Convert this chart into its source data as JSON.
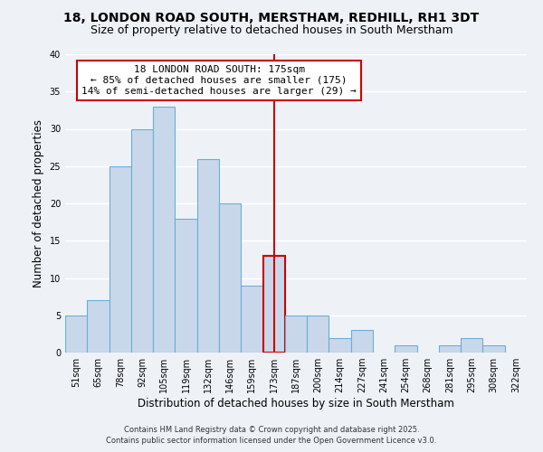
{
  "title": "18, LONDON ROAD SOUTH, MERSTHAM, REDHILL, RH1 3DT",
  "subtitle": "Size of property relative to detached houses in South Merstham",
  "xlabel": "Distribution of detached houses by size in South Merstham",
  "ylabel": "Number of detached properties",
  "bin_labels": [
    "51sqm",
    "65sqm",
    "78sqm",
    "92sqm",
    "105sqm",
    "119sqm",
    "132sqm",
    "146sqm",
    "159sqm",
    "173sqm",
    "187sqm",
    "200sqm",
    "214sqm",
    "227sqm",
    "241sqm",
    "254sqm",
    "268sqm",
    "281sqm",
    "295sqm",
    "308sqm",
    "322sqm"
  ],
  "bar_heights": [
    5,
    7,
    25,
    30,
    33,
    18,
    26,
    20,
    9,
    13,
    5,
    5,
    2,
    3,
    0,
    1,
    0,
    1,
    2,
    1,
    0
  ],
  "bar_color": "#c8d8ea",
  "bar_edge_color": "#6baed6",
  "highlight_bar_index": 9,
  "highlight_edge_color": "#cc0000",
  "vline_color": "#cc0000",
  "ylim": [
    0,
    40
  ],
  "yticks": [
    0,
    5,
    10,
    15,
    20,
    25,
    30,
    35,
    40
  ],
  "annotation_title": "18 LONDON ROAD SOUTH: 175sqm",
  "annotation_line1": "← 85% of detached houses are smaller (175)",
  "annotation_line2": "14% of semi-detached houses are larger (29) →",
  "annotation_box_color": "#ffffff",
  "annotation_box_edge": "#cc0000",
  "footer1": "Contains HM Land Registry data © Crown copyright and database right 2025.",
  "footer2": "Contains public sector information licensed under the Open Government Licence v3.0.",
  "background_color": "#eef2f7",
  "grid_color": "#ffffff",
  "title_fontsize": 10,
  "subtitle_fontsize": 9,
  "axis_label_fontsize": 8.5,
  "tick_fontsize": 7,
  "annotation_fontsize": 8,
  "footer_fontsize": 6
}
